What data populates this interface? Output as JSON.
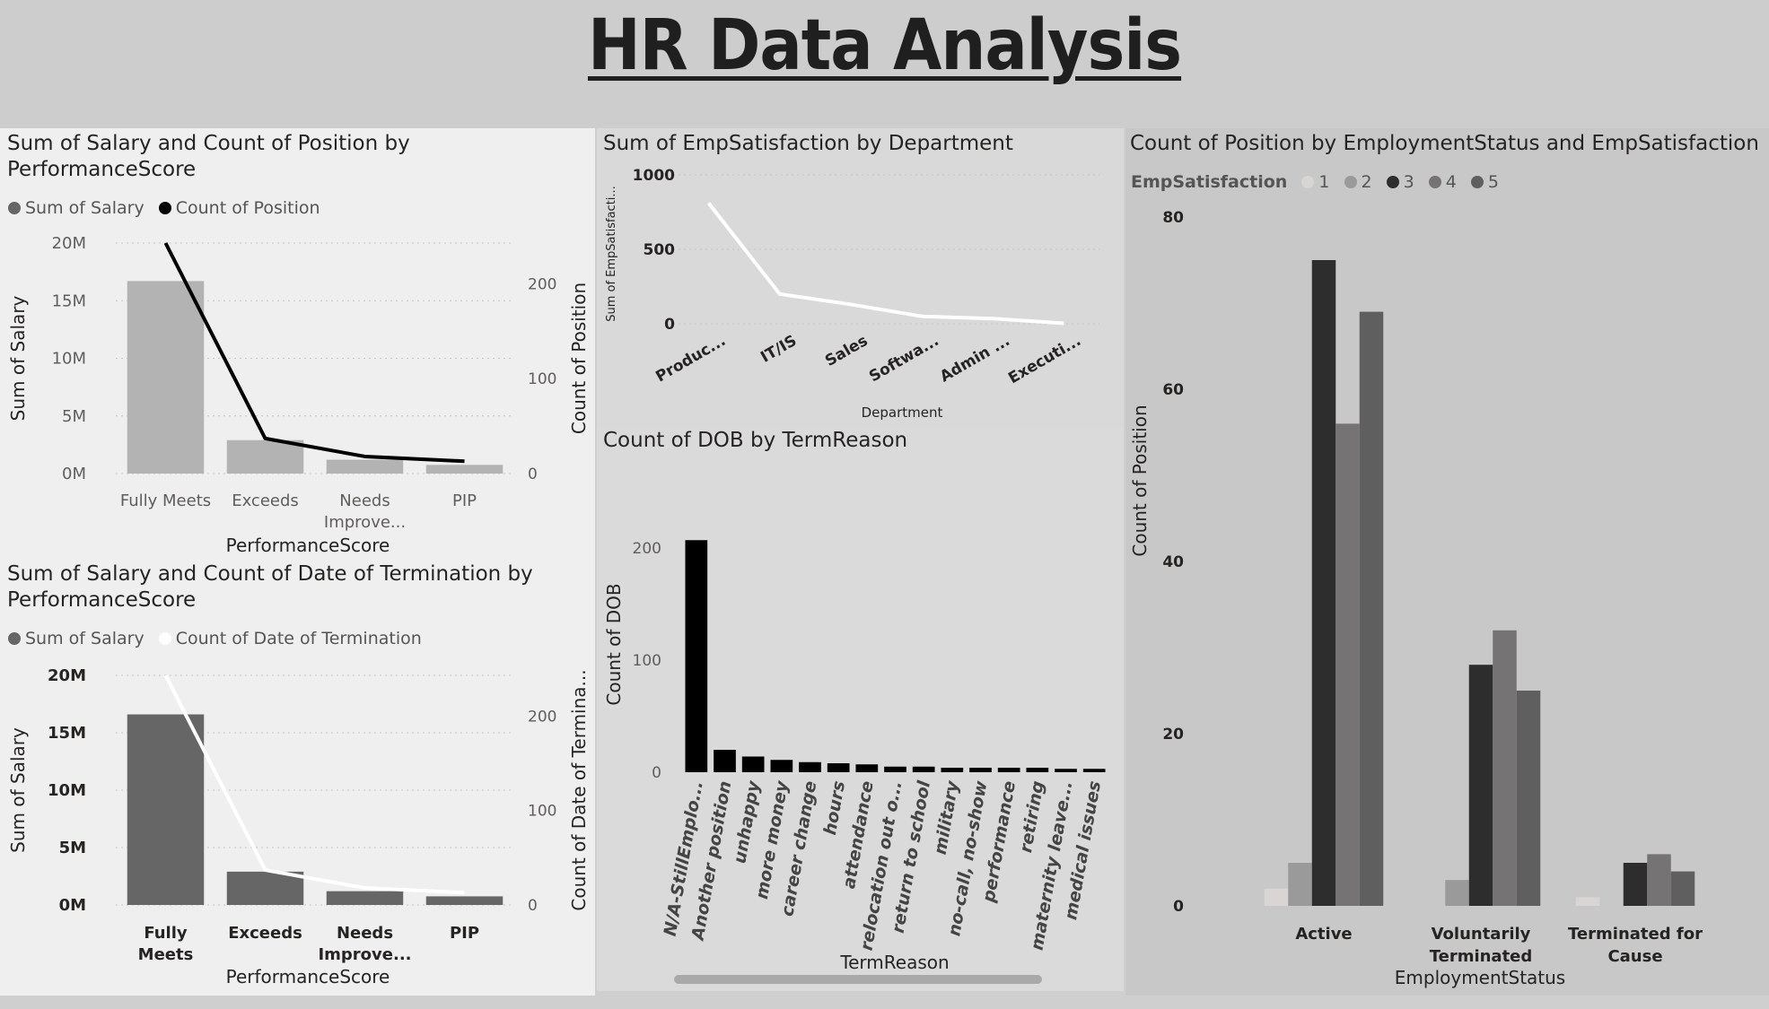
{
  "page": {
    "title": "HR Data Analysis"
  },
  "panels": {
    "p1": {
      "title": "Sum of Salary and Count of Position by PerformanceScore",
      "legend": [
        {
          "label": "Sum of Salary",
          "color": "#666666"
        },
        {
          "label": "Count of Position",
          "color": "#000000"
        }
      ]
    },
    "p2": {
      "title": "Sum of Salary and Count of Date of Termination by PerformanceScore",
      "legend": [
        {
          "label": "Sum of Salary",
          "color": "#666666"
        },
        {
          "label": "Count of Date of Termination",
          "color": "#ffffff"
        }
      ]
    },
    "p3": {
      "title": "Sum of EmpSatisfaction by Department"
    },
    "p4": {
      "title": "Count of DOB by TermReason"
    },
    "p5": {
      "title": "Count of Position by EmploymentStatus and EmpSatisfaction",
      "legend_title": "EmpSatisfaction",
      "legend": [
        {
          "label": "1",
          "color": "#dad5d5"
        },
        {
          "label": "2",
          "color": "#9a9a9a"
        },
        {
          "label": "3",
          "color": "#2d2d2d"
        },
        {
          "label": "4",
          "color": "#757373"
        },
        {
          "label": "5",
          "color": "#5f5f5f"
        }
      ]
    }
  },
  "chart_data": [
    {
      "id": "p1",
      "type": "bar+line",
      "title": "Sum of Salary and Count of Position by PerformanceScore",
      "categories": [
        "Fully Meets",
        "Exceeds",
        "Needs Improve...",
        "PIP"
      ],
      "series": [
        {
          "name": "Sum of Salary",
          "type": "bar",
          "values": [
            16700000,
            2900000,
            1200000,
            750000
          ],
          "color": "#b3b3b3"
        },
        {
          "name": "Count of Position",
          "type": "line",
          "axis": "right",
          "values": [
            243,
            37,
            18,
            13
          ],
          "color": "#000000"
        }
      ],
      "xlabel": "PerformanceScore",
      "ylabel": "Sum of Salary",
      "y2label": "Count of Position",
      "ylim": [
        0,
        20000000
      ],
      "y2lim": [
        0,
        243
      ],
      "yticks": [
        "0M",
        "5M",
        "10M",
        "15M",
        "20M"
      ],
      "y2ticks": [
        "0",
        "100",
        "200"
      ]
    },
    {
      "id": "p2",
      "type": "bar+line",
      "title": "Sum of Salary and Count of Date of Termination by PerformanceScore",
      "categories": [
        "Fully Meets",
        "Exceeds",
        "Needs Improve...",
        "PIP"
      ],
      "series": [
        {
          "name": "Sum of Salary",
          "type": "bar",
          "values": [
            16600000,
            2900000,
            1200000,
            750000
          ],
          "color": "#666666"
        },
        {
          "name": "Count of Date of Termination",
          "type": "line",
          "axis": "right",
          "values": [
            243,
            37,
            18,
            13
          ],
          "color": "#ffffff"
        }
      ],
      "xlabel": "PerformanceScore",
      "ylabel": "Sum of Salary",
      "y2label": "Count of Date of Termina...",
      "ylim": [
        0,
        20000000
      ],
      "y2lim": [
        0,
        243
      ],
      "yticks": [
        "0M",
        "5M",
        "10M",
        "15M",
        "20M"
      ],
      "y2ticks": [
        "0",
        "100",
        "200"
      ]
    },
    {
      "id": "p3",
      "type": "line",
      "title": "Sum of EmpSatisfaction by Department",
      "categories": [
        "Produc...",
        "IT/IS",
        "Sales",
        "Softwa...",
        "Admin ...",
        "Executi..."
      ],
      "series": [
        {
          "name": "Sum of EmpSatisfaction",
          "values": [
            810,
            200,
            130,
            50,
            35,
            3
          ],
          "color": "#ffffff"
        }
      ],
      "xlabel": "Department",
      "ylabel": "Sum of EmpSatisfacti...",
      "ylim": [
        0,
        1000
      ],
      "yticks": [
        "0",
        "500",
        "1000"
      ]
    },
    {
      "id": "p4",
      "type": "bar",
      "title": "Count of DOB by TermReason",
      "categories": [
        "N/A-StillEmplo...",
        "Another position",
        "unhappy",
        "more money",
        "career change",
        "hours",
        "attendance",
        "relocation out o...",
        "return to school",
        "military",
        "no-call, no-show",
        "performance",
        "retiring",
        "maternity leave...",
        "medical issues"
      ],
      "values": [
        207,
        20,
        14,
        11,
        9,
        8,
        7,
        5,
        5,
        4,
        4,
        4,
        4,
        3,
        3
      ],
      "xlabel": "TermReason",
      "ylabel": "Count of DOB",
      "ylim": [
        0,
        220
      ],
      "yticks": [
        "0",
        "100",
        "200"
      ]
    },
    {
      "id": "p5",
      "type": "bar",
      "title": "Count of Position by EmploymentStatus and EmpSatisfaction",
      "categories": [
        "Active",
        "Voluntarily Terminated",
        "Terminated for Cause"
      ],
      "series": [
        {
          "name": "1",
          "values": [
            2,
            0,
            1
          ]
        },
        {
          "name": "2",
          "values": [
            5,
            3,
            0
          ]
        },
        {
          "name": "3",
          "values": [
            75,
            28,
            5
          ]
        },
        {
          "name": "4",
          "values": [
            56,
            32,
            6
          ]
        },
        {
          "name": "5",
          "values": [
            69,
            25,
            4
          ]
        }
      ],
      "xlabel": "EmploymentStatus",
      "ylabel": "Count of Position",
      "ylim": [
        0,
        80
      ],
      "yticks": [
        "0",
        "20",
        "40",
        "60",
        "80"
      ],
      "legend": "top-left"
    }
  ]
}
